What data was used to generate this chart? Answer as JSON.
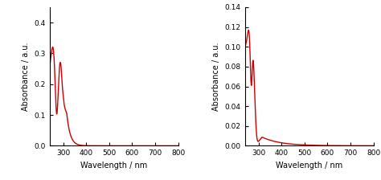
{
  "left_chart": {
    "ylabel": "Absorbance / a.u.",
    "xlabel": "Wavelength / nm",
    "xlim": [
      240,
      800
    ],
    "ylim": [
      0,
      0.45
    ],
    "yticks": [
      0,
      0.1,
      0.2,
      0.3,
      0.4
    ],
    "xticks": [
      300,
      400,
      500,
      600,
      700,
      800
    ],
    "color": "#cc0000",
    "line_width": 1.0
  },
  "right_chart": {
    "ylabel": "Absorbance / a.u.",
    "xlabel": "Wavelength / nm",
    "xlim": [
      240,
      800
    ],
    "ylim": [
      0,
      0.14
    ],
    "yticks": [
      0,
      0.02,
      0.04,
      0.06,
      0.08,
      0.1,
      0.12,
      0.14
    ],
    "xticks": [
      300,
      400,
      500,
      600,
      700,
      800
    ],
    "color": "#cc0000",
    "line_width": 1.0
  }
}
